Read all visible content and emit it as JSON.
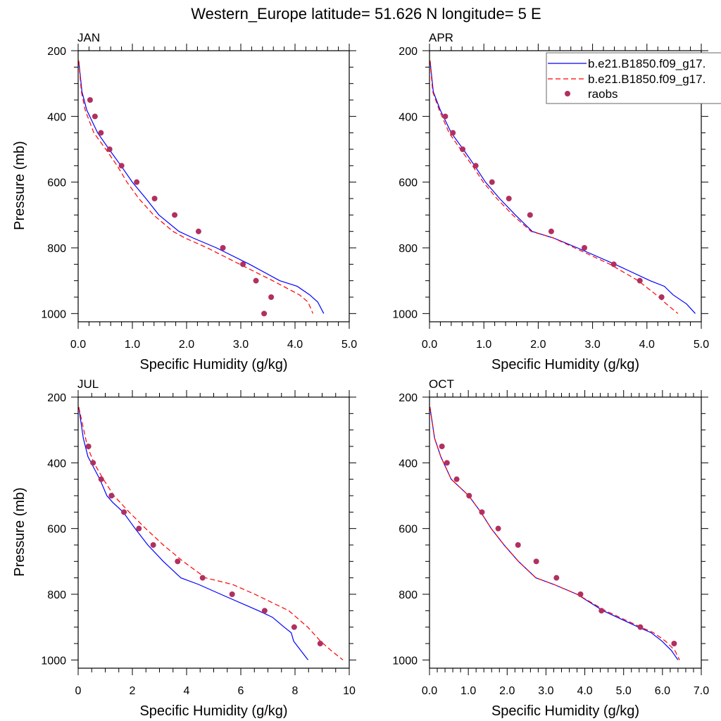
{
  "chart_data": {
    "type": "line",
    "title": "Western_Europe  latitude= 51.626 N longitude= 5 E",
    "ylabel": "Pressure (mb)",
    "xlabel": "Specific Humidity (g/kg)",
    "legend": {
      "placement": "top-right",
      "entries": [
        {
          "label": "b.e21.B1850.f09_g17.",
          "style": "solid",
          "color": "#0000ff"
        },
        {
          "label": "b.e21.B1850.f09_g17.",
          "style": "dashed",
          "color": "#ff0000"
        },
        {
          "label": "raobs",
          "style": "marker",
          "color": "#b03060"
        }
      ]
    },
    "colors": {
      "model1": "#0000ff",
      "model2": "#ff0000",
      "raobs": "#b03060"
    },
    "panels": [
      {
        "name": "JAN",
        "xlim": [
          0,
          5
        ],
        "ylim": [
          1025,
          200
        ],
        "y_reversed": true,
        "xticks": [
          0,
          1,
          2,
          3,
          4,
          5
        ],
        "xtick_labels": [
          "0.0",
          "1.0",
          "2.0",
          "3.0",
          "4.0",
          "5.0"
        ],
        "xminor": 0.2,
        "yticks": [
          200,
          400,
          600,
          800,
          1000
        ],
        "ytick_labels": [
          "200",
          "400",
          "600",
          "800",
          "1000"
        ],
        "yminor": 50,
        "show_ylabel": true,
        "model1": [
          [
            0.01,
            230
          ],
          [
            0.07,
            325
          ],
          [
            0.16,
            381
          ],
          [
            0.36,
            450
          ],
          [
            0.57,
            500
          ],
          [
            0.79,
            550
          ],
          [
            1.0,
            600
          ],
          [
            1.25,
            650
          ],
          [
            1.49,
            700
          ],
          [
            1.86,
            750
          ],
          [
            2.12,
            770
          ],
          [
            2.55,
            800
          ],
          [
            3.16,
            850
          ],
          [
            3.72,
            900
          ],
          [
            4.04,
            917
          ],
          [
            4.27,
            943
          ],
          [
            4.42,
            965
          ],
          [
            4.53,
            1000
          ]
        ],
        "model2": [
          [
            0.01,
            230
          ],
          [
            0.06,
            325
          ],
          [
            0.13,
            381
          ],
          [
            0.29,
            450
          ],
          [
            0.51,
            500
          ],
          [
            0.72,
            550
          ],
          [
            0.9,
            600
          ],
          [
            1.12,
            650
          ],
          [
            1.39,
            700
          ],
          [
            1.75,
            750
          ],
          [
            1.97,
            770
          ],
          [
            2.38,
            800
          ],
          [
            2.98,
            850
          ],
          [
            3.59,
            900
          ],
          [
            4.08,
            943
          ],
          [
            4.24,
            965
          ],
          [
            4.33,
            1000
          ]
        ],
        "raobs": [
          [
            0.22,
            350
          ],
          [
            0.31,
            400
          ],
          [
            0.42,
            450
          ],
          [
            0.58,
            500
          ],
          [
            0.8,
            550
          ],
          [
            1.08,
            600
          ],
          [
            1.41,
            650
          ],
          [
            1.78,
            700
          ],
          [
            2.22,
            750
          ],
          [
            2.67,
            800
          ],
          [
            3.04,
            850
          ],
          [
            3.28,
            900
          ],
          [
            3.56,
            950
          ],
          [
            3.43,
            1000
          ]
        ]
      },
      {
        "name": "APR",
        "xlim": [
          0,
          5
        ],
        "ylim": [
          1025,
          200
        ],
        "y_reversed": true,
        "xticks": [
          0,
          1,
          2,
          3,
          4,
          5
        ],
        "xtick_labels": [
          "0.0",
          "1.0",
          "2.0",
          "3.0",
          "4.0",
          "5.0"
        ],
        "xminor": 0.2,
        "yticks": [
          200,
          400,
          600,
          800,
          1000
        ],
        "ytick_labels": [
          "200",
          "400",
          "600",
          "800",
          "1000"
        ],
        "yminor": 50,
        "show_ylabel": false,
        "model1": [
          [
            0.01,
            230
          ],
          [
            0.07,
            325
          ],
          [
            0.2,
            381
          ],
          [
            0.4,
            450
          ],
          [
            0.62,
            500
          ],
          [
            0.83,
            550
          ],
          [
            1.03,
            600
          ],
          [
            1.29,
            650
          ],
          [
            1.58,
            700
          ],
          [
            1.89,
            750
          ],
          [
            2.28,
            770
          ],
          [
            2.72,
            800
          ],
          [
            3.41,
            850
          ],
          [
            4.06,
            900
          ],
          [
            4.32,
            917
          ],
          [
            4.48,
            943
          ],
          [
            4.73,
            971
          ],
          [
            4.89,
            1000
          ]
        ],
        "model2": [
          [
            0.01,
            230
          ],
          [
            0.06,
            325
          ],
          [
            0.18,
            381
          ],
          [
            0.36,
            450
          ],
          [
            0.57,
            500
          ],
          [
            0.79,
            550
          ],
          [
            0.99,
            600
          ],
          [
            1.24,
            650
          ],
          [
            1.53,
            700
          ],
          [
            1.87,
            750
          ],
          [
            2.28,
            770
          ],
          [
            2.67,
            800
          ],
          [
            3.32,
            850
          ],
          [
            3.84,
            900
          ],
          [
            4.17,
            943
          ],
          [
            4.36,
            971
          ],
          [
            4.57,
            1000
          ]
        ],
        "raobs": [
          [
            0.29,
            400
          ],
          [
            0.43,
            450
          ],
          [
            0.61,
            500
          ],
          [
            0.85,
            550
          ],
          [
            1.15,
            600
          ],
          [
            1.46,
            650
          ],
          [
            1.85,
            700
          ],
          [
            2.24,
            750
          ],
          [
            2.85,
            800
          ],
          [
            3.39,
            850
          ],
          [
            3.87,
            900
          ],
          [
            4.27,
            950
          ]
        ]
      },
      {
        "name": "JUL",
        "xlim": [
          0,
          10
        ],
        "ylim": [
          1025,
          200
        ],
        "y_reversed": true,
        "xticks": [
          0,
          2,
          4,
          6,
          8,
          10
        ],
        "xtick_labels": [
          "0",
          "2",
          "4",
          "6",
          "8",
          "10"
        ],
        "xminor": 0.5,
        "yticks": [
          200,
          400,
          600,
          800,
          1000
        ],
        "ytick_labels": [
          "200",
          "400",
          "600",
          "800",
          "1000"
        ],
        "yminor": 50,
        "show_ylabel": true,
        "model1": [
          [
            0.02,
            230
          ],
          [
            0.19,
            325
          ],
          [
            0.36,
            381
          ],
          [
            0.8,
            450
          ],
          [
            1.06,
            500
          ],
          [
            1.27,
            520
          ],
          [
            1.66,
            550
          ],
          [
            2.1,
            600
          ],
          [
            2.57,
            650
          ],
          [
            3.14,
            700
          ],
          [
            3.79,
            750
          ],
          [
            4.44,
            770
          ],
          [
            5.26,
            800
          ],
          [
            6.65,
            850
          ],
          [
            7.17,
            870
          ],
          [
            7.6,
            900
          ],
          [
            7.86,
            917
          ],
          [
            7.95,
            943
          ],
          [
            8.21,
            971
          ],
          [
            8.48,
            1000
          ]
        ],
        "model2": [
          [
            0.02,
            230
          ],
          [
            0.34,
            350
          ],
          [
            0.58,
            400
          ],
          [
            0.93,
            450
          ],
          [
            1.32,
            500
          ],
          [
            1.88,
            550
          ],
          [
            2.49,
            600
          ],
          [
            3.14,
            650
          ],
          [
            3.87,
            700
          ],
          [
            4.7,
            750
          ],
          [
            5.69,
            770
          ],
          [
            6.52,
            800
          ],
          [
            7.77,
            850
          ],
          [
            8.47,
            900
          ],
          [
            8.94,
            943
          ],
          [
            9.33,
            971
          ],
          [
            9.77,
            1000
          ]
        ],
        "raobs": [
          [
            0.38,
            350
          ],
          [
            0.55,
            400
          ],
          [
            0.85,
            450
          ],
          [
            1.23,
            500
          ],
          [
            1.69,
            550
          ],
          [
            2.24,
            600
          ],
          [
            2.77,
            650
          ],
          [
            3.67,
            700
          ],
          [
            4.59,
            750
          ],
          [
            5.68,
            800
          ],
          [
            6.88,
            850
          ],
          [
            7.97,
            900
          ],
          [
            8.93,
            950
          ]
        ]
      },
      {
        "name": "OCT",
        "xlim": [
          0,
          7
        ],
        "ylim": [
          1025,
          200
        ],
        "y_reversed": true,
        "xticks": [
          0,
          1,
          2,
          3,
          4,
          5,
          6,
          7
        ],
        "xtick_labels": [
          "0.0",
          "1.0",
          "2.0",
          "3.0",
          "4.0",
          "5.0",
          "6.0",
          "7.0"
        ],
        "xminor": 0.2,
        "yticks": [
          200,
          400,
          600,
          800,
          1000
        ],
        "ytick_labels": [
          "200",
          "400",
          "600",
          "800",
          "1000"
        ],
        "yminor": 50,
        "show_ylabel": false,
        "model1": [
          [
            0.01,
            230
          ],
          [
            0.13,
            325
          ],
          [
            0.29,
            381
          ],
          [
            0.56,
            450
          ],
          [
            1.01,
            500
          ],
          [
            1.32,
            550
          ],
          [
            1.59,
            600
          ],
          [
            1.92,
            650
          ],
          [
            2.29,
            700
          ],
          [
            2.74,
            750
          ],
          [
            3.2,
            770
          ],
          [
            3.8,
            800
          ],
          [
            4.47,
            850
          ],
          [
            5.38,
            900
          ],
          [
            5.71,
            917
          ],
          [
            5.99,
            943
          ],
          [
            6.23,
            971
          ],
          [
            6.4,
            1000
          ]
        ],
        "model2": [
          [
            0.01,
            230
          ],
          [
            0.13,
            325
          ],
          [
            0.29,
            381
          ],
          [
            0.56,
            450
          ],
          [
            1.01,
            500
          ],
          [
            1.32,
            550
          ],
          [
            1.59,
            600
          ],
          [
            1.92,
            650
          ],
          [
            2.29,
            700
          ],
          [
            2.74,
            750
          ],
          [
            3.2,
            770
          ],
          [
            3.8,
            800
          ],
          [
            4.53,
            850
          ],
          [
            5.44,
            900
          ],
          [
            5.77,
            917
          ],
          [
            6.08,
            943
          ],
          [
            6.32,
            971
          ],
          [
            6.44,
            1000
          ]
        ],
        "raobs": [
          [
            0.32,
            350
          ],
          [
            0.45,
            400
          ],
          [
            0.7,
            450
          ],
          [
            1.02,
            500
          ],
          [
            1.35,
            550
          ],
          [
            1.77,
            600
          ],
          [
            2.28,
            650
          ],
          [
            2.75,
            700
          ],
          [
            3.27,
            750
          ],
          [
            3.89,
            800
          ],
          [
            4.43,
            850
          ],
          [
            5.43,
            900
          ],
          [
            6.3,
            950
          ]
        ]
      }
    ]
  }
}
